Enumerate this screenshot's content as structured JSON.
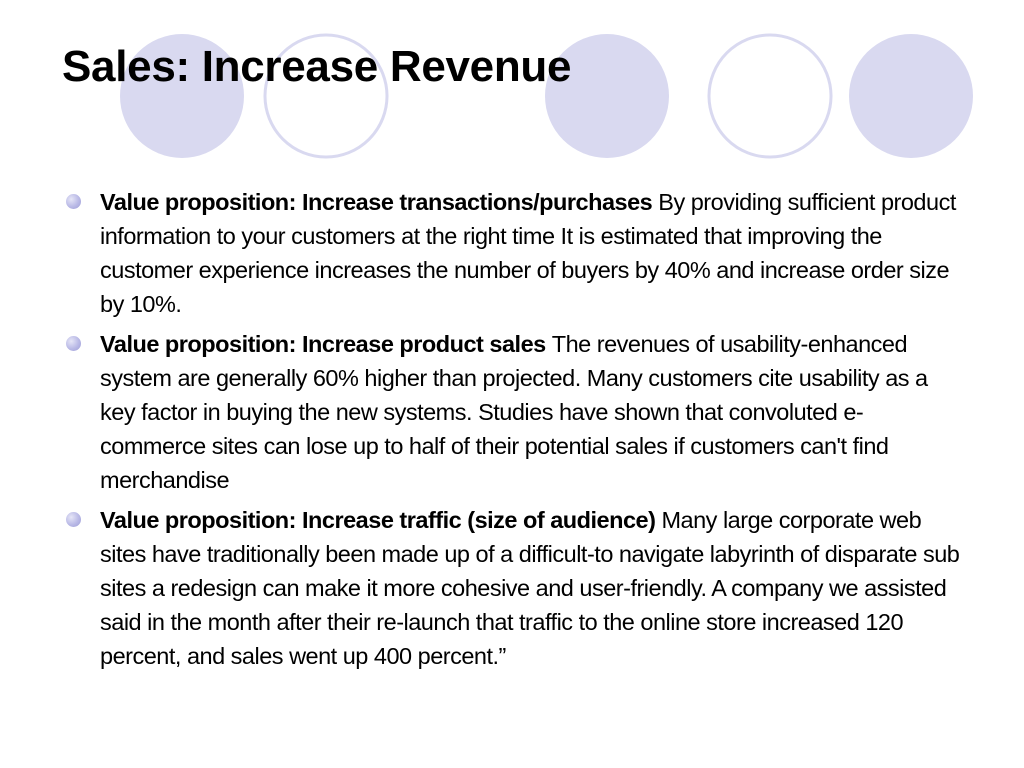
{
  "slide": {
    "title": "Sales: Increase Revenue",
    "bullets": [
      {
        "heading": "Value proposition: Increase transactions/purchases",
        "text": "By providing sufficient product information to your customers at the right time It is estimated that improving the customer experience increases the number of buyers by 40% and increase order size by 10%."
      },
      {
        "heading": "Value proposition: Increase product sales",
        "text": "The revenues of usability-enhanced system are generally  60% higher than projected. Many customers cite usability as a key factor in buying the new systems. Studies have shown that convoluted e-commerce sites can lose up to half of their potential sales if customers can't find merchandise"
      },
      {
        "heading": "Value proposition: Increase traffic (size of audience)",
        "text": "Many large corporate web sites have traditionally been made up of a difficult-to navigate labyrinth of disparate sub sites a redesign can make it more cohesive and user-friendly. A company we assisted said in the month after their re-launch that traffic to the online store increased 120 percent, and sales went up 400 percent.”"
      }
    ]
  },
  "theme": {
    "circle_fill": "#d9d9f0",
    "circle_outline": "#d9d9f0",
    "bullet_color": "#b3b3e3",
    "text_color": "#000000"
  }
}
